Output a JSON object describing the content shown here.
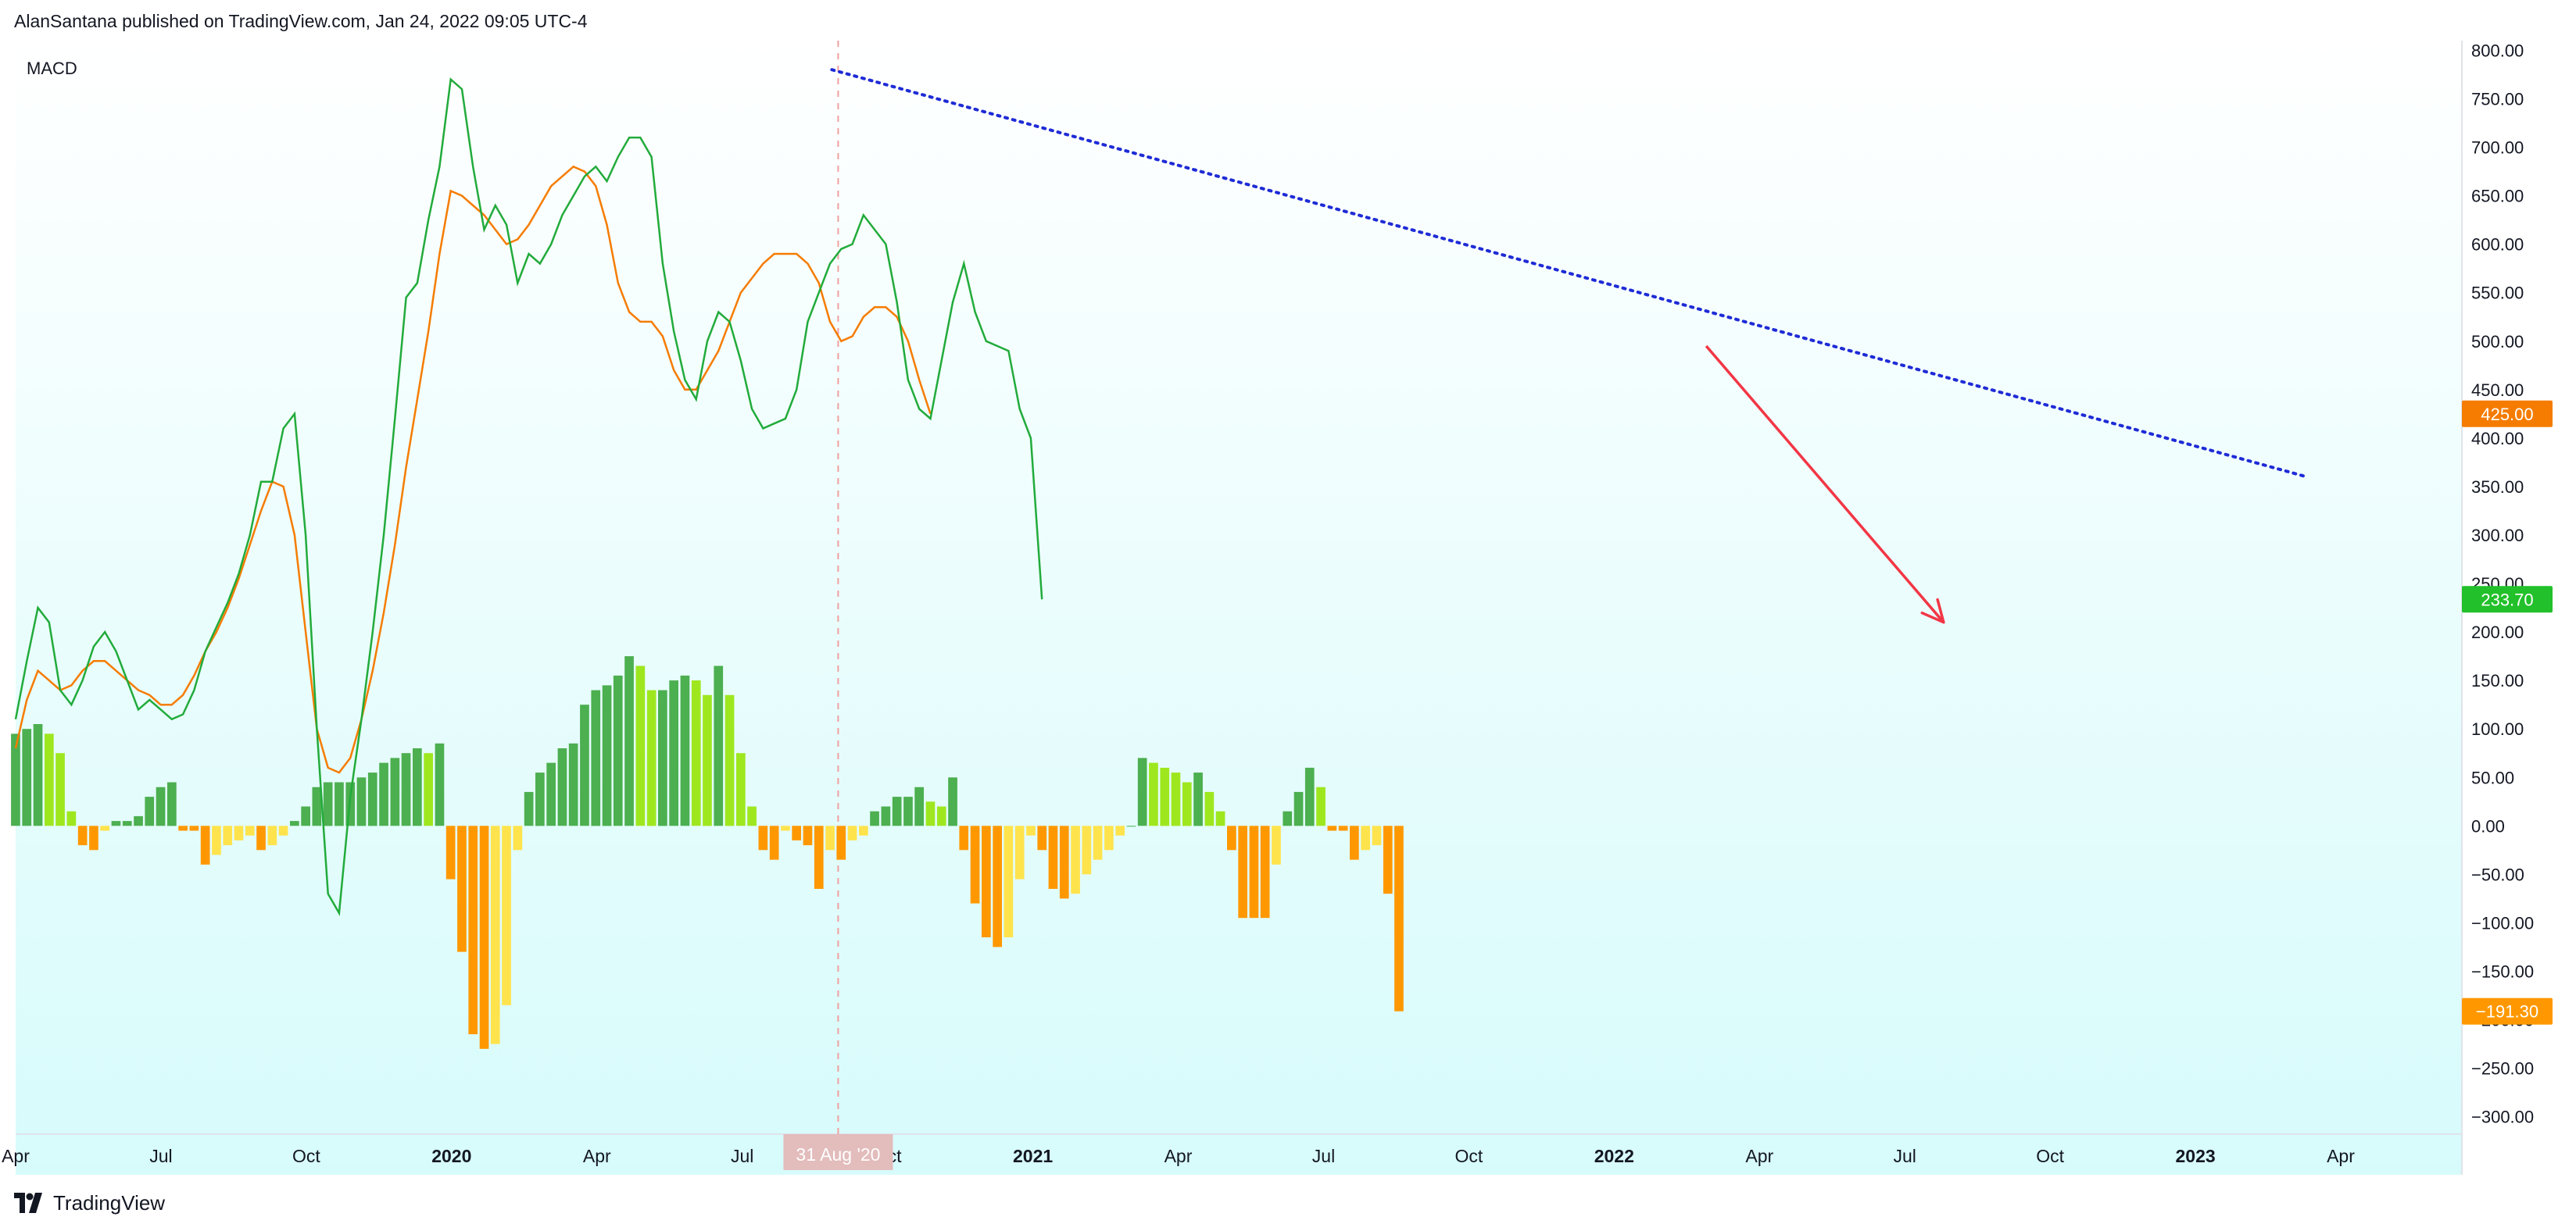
{
  "header": {
    "published_by": "AlanSantana published on TradingView.com, Jan 24, 2022 09:05 UTC-4"
  },
  "footer": {
    "brand": "TradingView",
    "logo_icon": "tradingview-logo-icon"
  },
  "chart_data": {
    "type": "line",
    "indicator_label": "MACD",
    "x_axis": {
      "ticks": [
        "Apr",
        "Jul",
        "Oct",
        "2020",
        "Apr",
        "Jul",
        "Oct",
        "2021",
        "Apr",
        "Jul",
        "Oct",
        "2022",
        "Apr",
        "Jul",
        "Oct",
        "2023",
        "Apr"
      ],
      "tick_positions": [
        0,
        3,
        6,
        9,
        12,
        15,
        18,
        21,
        24,
        27,
        30,
        33,
        36,
        39,
        42,
        45,
        48
      ],
      "unit": "months since Apr 2019",
      "range": [
        0,
        50.5
      ],
      "crosshair_label": "31 Aug '20",
      "crosshair_x": 16.98
    },
    "y_axis": {
      "range": [
        -318,
        810
      ],
      "ticks": [
        800,
        750,
        700,
        650,
        600,
        550,
        500,
        450,
        400,
        350,
        300,
        250,
        200,
        150,
        100,
        50,
        0,
        -50,
        -100,
        -150,
        -200,
        -250,
        -300
      ],
      "tick_labels": [
        "800.00",
        "750.00",
        "700.00",
        "650.00",
        "600.00",
        "550.00",
        "500.00",
        "450.00",
        "400.00",
        "350.00",
        "300.00",
        "250.00",
        "200.00",
        "150.00",
        "100.00",
        "50.00",
        "0.00",
        "−50.00",
        "−100.00",
        "−150.00",
        "−200.00",
        "−250.00",
        "−300.00"
      ]
    },
    "colors": {
      "macd": "#22ab3b",
      "signal": "#f57c00",
      "hist_up_strong": "#4caf50",
      "hist_up_weak": "#9ee71f",
      "hist_down_strong": "#ff9800",
      "hist_down_weak": "#ffe34d",
      "trendline": "#1e2bd6",
      "arrow": "#f23645",
      "bg_top": "#ffffff",
      "bg_bottom": "#d7fbfb"
    },
    "series": [
      {
        "name": "MACD",
        "last_value": "233.70",
        "x_start": 0,
        "x_step": 0.2303,
        "values": [
          110,
          170,
          225,
          210,
          140,
          125,
          150,
          185,
          200,
          180,
          150,
          120,
          130,
          120,
          110,
          115,
          140,
          180,
          205,
          230,
          260,
          300,
          355,
          355,
          410,
          425,
          300,
          100,
          -70,
          -90,
          30,
          110,
          200,
          300,
          420,
          545,
          560,
          625,
          680,
          770,
          760,
          680,
          615,
          640,
          620,
          560,
          590,
          580,
          600,
          630,
          650,
          670,
          680,
          665,
          690,
          710,
          710,
          690,
          580,
          510,
          460,
          440,
          500,
          530,
          520,
          480,
          430,
          410,
          415,
          420,
          450,
          520,
          550,
          580,
          595,
          600,
          630,
          615,
          600,
          540,
          460,
          430,
          420,
          480,
          540,
          580,
          530,
          500,
          495,
          490,
          430,
          400,
          233.7
        ]
      },
      {
        "name": "Signal",
        "last_value": "425.00",
        "x_start": 0,
        "x_step": 0.2303,
        "values": [
          80,
          130,
          160,
          150,
          140,
          145,
          160,
          170,
          170,
          160,
          150,
          140,
          135,
          125,
          125,
          135,
          155,
          180,
          200,
          225,
          255,
          290,
          325,
          355,
          350,
          300,
          200,
          100,
          60,
          55,
          70,
          110,
          160,
          220,
          290,
          370,
          440,
          510,
          590,
          655,
          650,
          640,
          630,
          615,
          600,
          605,
          620,
          640,
          660,
          670,
          680,
          675,
          660,
          620,
          560,
          530,
          520,
          520,
          505,
          470,
          450,
          450,
          470,
          490,
          520,
          550,
          565,
          580,
          590,
          590,
          590,
          580,
          560,
          520,
          500,
          505,
          525,
          535,
          535,
          525,
          500,
          460,
          425
        ]
      }
    ],
    "histogram": {
      "name": "MACD histogram",
      "last_value": "−191.30",
      "x_start": 0,
      "x_step": 0.2303,
      "values": [
        95,
        100,
        105,
        95,
        75,
        15,
        -20,
        -25,
        -5,
        5,
        5,
        10,
        30,
        40,
        45,
        -5,
        -5,
        -40,
        -30,
        -20,
        -15,
        -10,
        -25,
        -20,
        -10,
        5,
        20,
        40,
        45,
        45,
        45,
        50,
        55,
        65,
        70,
        75,
        80,
        75,
        85,
        -55,
        -130,
        -215,
        -230,
        -225,
        -185,
        -25,
        35,
        55,
        65,
        80,
        85,
        125,
        140,
        145,
        155,
        175,
        165,
        140,
        140,
        150,
        155,
        150,
        135,
        165,
        135,
        75,
        20,
        -25,
        -35,
        -5,
        -15,
        -20,
        -65,
        -25,
        -35,
        -15,
        -10,
        15,
        20,
        30,
        30,
        40,
        25,
        20,
        50,
        -25,
        -80,
        -115,
        -125,
        -115,
        -55,
        -10,
        -25,
        -65,
        -75,
        -70,
        -50,
        -35,
        -25,
        -10,
        0,
        70,
        65,
        60,
        55,
        45,
        55,
        35,
        15,
        -25,
        -95,
        -95,
        -95,
        -40,
        15,
        35,
        60,
        40,
        -5,
        -5,
        -35,
        -25,
        -20,
        -70,
        -191.3
      ]
    },
    "annotations": {
      "trendline": {
        "from": [
          16.85,
          780
        ],
        "to": [
          47.3,
          360
        ],
        "style": "dotted"
      },
      "arrow": {
        "from": [
          34.9,
          495
        ],
        "to": [
          39.8,
          210
        ],
        "direction": "down"
      }
    }
  }
}
